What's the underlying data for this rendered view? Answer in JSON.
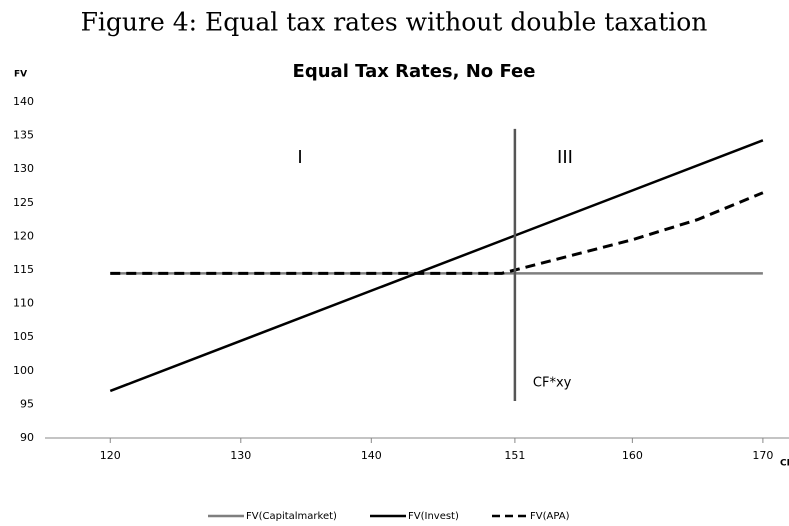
{
  "caption": "Figure 4: Equal tax rates without double taxation",
  "chart_data": {
    "type": "line",
    "title": "Equal Tax Rates, No Fee",
    "ylabel": "FV",
    "xlabel": "CF",
    "xlim": [
      115,
      172
    ],
    "xticks": [
      120,
      130,
      140,
      151,
      160,
      170
    ],
    "ylim": [
      90,
      140
    ],
    "yticks": [
      90,
      95,
      100,
      105,
      110,
      115,
      120,
      125,
      130,
      135,
      140
    ],
    "grid": false,
    "legend": "bottom",
    "series": [
      {
        "name": "FV(Capitalmarket)",
        "color": "#7f7f7f",
        "dash": false,
        "x": [
          120,
          170
        ],
        "values": [
          114.5,
          114.5
        ]
      },
      {
        "name": "FV(Invest)",
        "color": "#000000",
        "dash": false,
        "x": [
          120,
          170
        ],
        "values": [
          97,
          134.3
        ]
      },
      {
        "name": "FV(APA)",
        "color": "#000000",
        "dash": true,
        "x": [
          120,
          150,
          151,
          155,
          160,
          165,
          170
        ],
        "values": [
          114.5,
          114.5,
          115,
          117,
          119.5,
          122.5,
          126.5
        ]
      }
    ],
    "vline": {
      "x": 151,
      "ylim": [
        95.5,
        136
      ],
      "label": "CF*xy"
    },
    "regions": [
      "I",
      "III"
    ]
  }
}
